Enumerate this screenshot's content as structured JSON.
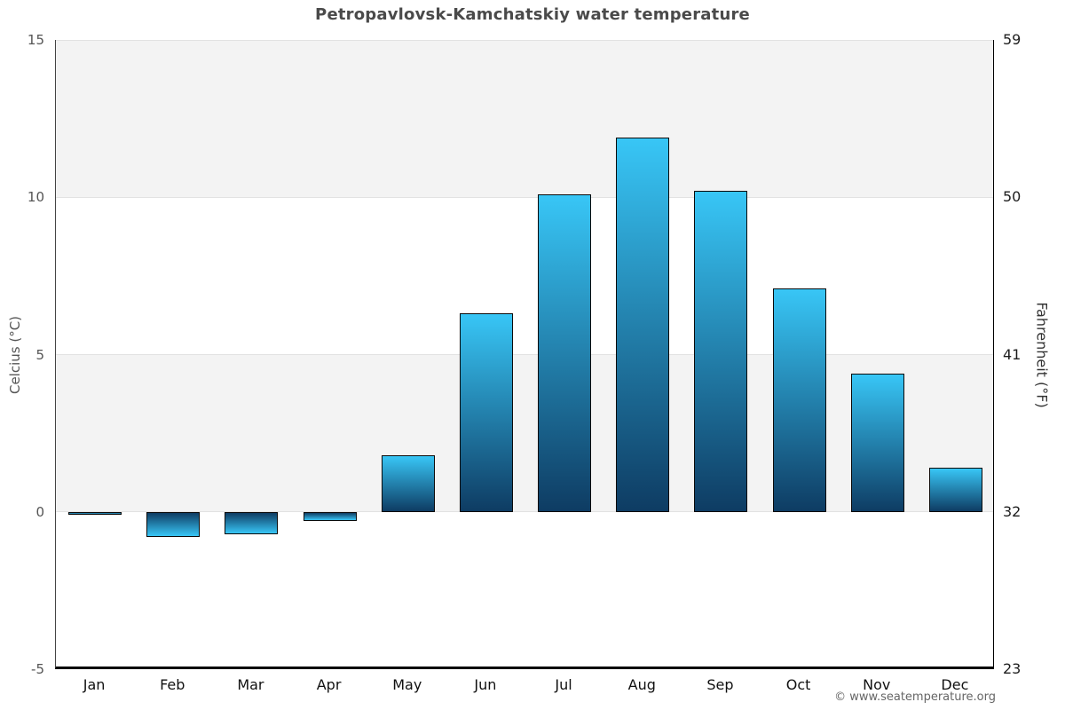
{
  "title": "Petropavlovsk-Kamchatskiy water temperature",
  "footer": "© www.seatemperature.org",
  "chart_data": {
    "type": "bar",
    "title": "Petropavlovsk-Kamchatskiy water temperature",
    "categories": [
      "Jan",
      "Feb",
      "Mar",
      "Apr",
      "May",
      "Jun",
      "Jul",
      "Aug",
      "Sep",
      "Oct",
      "Nov",
      "Dec"
    ],
    "values": [
      -0.1,
      -0.8,
      -0.7,
      -0.3,
      1.8,
      6.3,
      10.1,
      11.9,
      10.2,
      7.1,
      4.4,
      1.4
    ],
    "ylabel": "Celcius (°C)",
    "ylabel_right": "Fahrenheit (°F)",
    "ylim": [
      -5,
      15
    ],
    "yticks_celsius": [
      15,
      10,
      5,
      0,
      -5
    ],
    "yticks_fahrenheit": [
      59,
      50,
      41,
      32,
      23
    ],
    "grid": "horizontal-bands",
    "band_rows_celsius": [
      [
        15,
        10
      ],
      [
        5,
        0
      ]
    ],
    "legend": "none",
    "colors": {
      "bar_gradient_tip": "#38c6f6",
      "bar_gradient_base": "#0e3c63",
      "bar_border": "#0a0a0a",
      "band_fill": "#f3f3f3",
      "gridline": "#e2e2e2",
      "title_text": "#4a4a4a",
      "left_axis_text": "#555555",
      "right_axis_text": "#1d1d1d",
      "month_text": "#111111",
      "footer_text": "#666666"
    }
  }
}
